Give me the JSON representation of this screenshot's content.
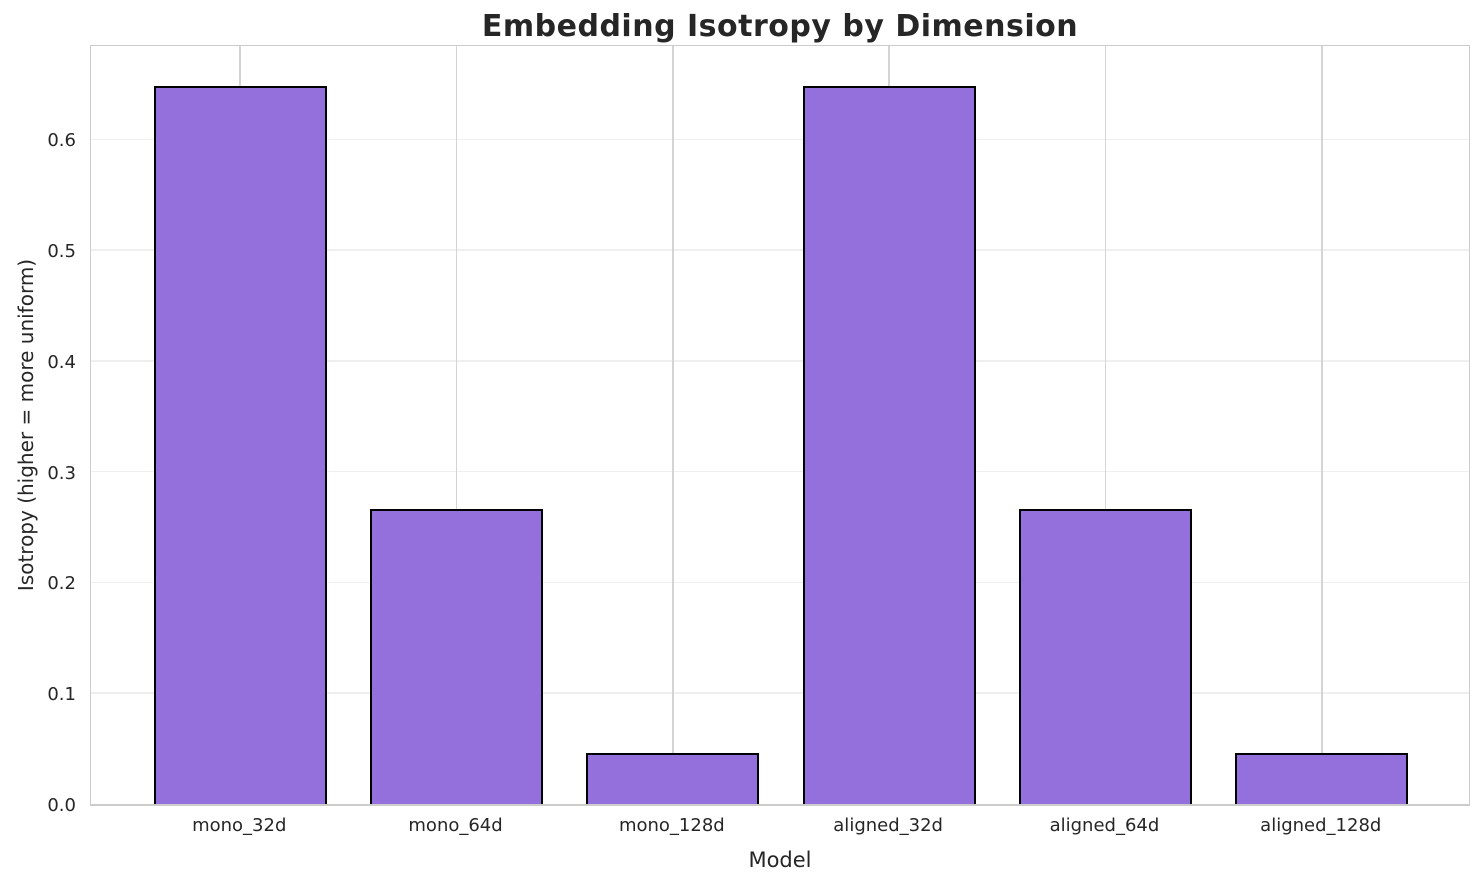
{
  "chart_data": {
    "type": "bar",
    "title": "Embedding Isotropy by Dimension",
    "xlabel": "Model",
    "ylabel": "Isotropy (higher = more uniform)",
    "categories": [
      "mono_32d",
      "mono_64d",
      "mono_128d",
      "aligned_32d",
      "aligned_64d",
      "aligned_128d"
    ],
    "values": [
      0.648,
      0.266,
      0.046,
      0.648,
      0.266,
      0.046
    ],
    "ylim": [
      0,
      0.687
    ],
    "yticks": [
      0.0,
      0.1,
      0.2,
      0.3,
      0.4,
      0.5,
      0.6
    ],
    "ytick_format_decimals": 1,
    "grid": true,
    "legend": null,
    "bar_color": "#9370DB",
    "bar_edge_color": "#000000",
    "text_color": "#262626"
  }
}
